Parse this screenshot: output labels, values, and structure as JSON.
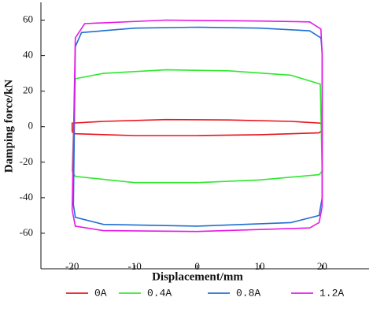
{
  "chart_data": {
    "type": "line",
    "x_label": "Displacement/mm",
    "y_label": "Damping force/kN",
    "xlim": [
      -25,
      27.5
    ],
    "ylim": [
      -80,
      70
    ],
    "xticks": [
      -20,
      -10,
      0,
      10,
      20
    ],
    "yticks": [
      -60,
      -40,
      -20,
      0,
      20,
      40,
      60
    ],
    "series": [
      {
        "name": "0A",
        "color": "#e8141c",
        "x": [
          -20,
          -20,
          -15,
          -5,
          5,
          15,
          19.8,
          20,
          19.5,
          10,
          0,
          -10,
          -19.5,
          -20
        ],
        "values": [
          -3,
          2,
          3,
          4,
          3.8,
          3,
          2,
          -2,
          -3.5,
          -4.5,
          -5,
          -5,
          -4,
          -3
        ]
      },
      {
        "name": "0.4A",
        "color": "#2ee82e",
        "x": [
          -20,
          -19.5,
          -15,
          -5,
          5,
          15,
          19.7,
          20,
          19.5,
          10,
          0,
          -10,
          -19.5,
          -20
        ],
        "values": [
          -25,
          27,
          30,
          32,
          31.5,
          29,
          24,
          -25,
          -27,
          -30,
          -31.5,
          -31.5,
          -28,
          -25
        ]
      },
      {
        "name": "0.8A",
        "color": "#1f6fd1",
        "x": [
          -19.8,
          -19.5,
          -18.5,
          -10,
          0,
          10,
          18,
          19.8,
          20,
          20,
          19.5,
          15,
          0,
          -15,
          -19.5,
          -19.8
        ],
        "values": [
          -44,
          45,
          53,
          55.5,
          56,
          55.5,
          54,
          50,
          42,
          -40,
          -50,
          -54,
          -56,
          -55,
          -51,
          -44
        ]
      },
      {
        "name": "1.2A",
        "color": "#e619e6",
        "x": [
          -20,
          -19.5,
          -18,
          -5,
          10,
          18,
          19.8,
          20,
          20,
          19.5,
          18,
          0,
          -15,
          -19.5,
          -20
        ],
        "values": [
          -47,
          50,
          58,
          60,
          59.5,
          59,
          55,
          40,
          -45,
          -54,
          -57,
          -59,
          -58.5,
          -56,
          -47
        ]
      }
    ]
  }
}
